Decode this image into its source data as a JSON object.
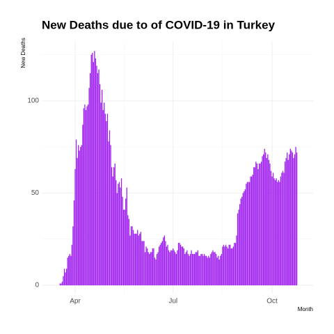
{
  "chart_data": {
    "type": "bar",
    "title": "New Deaths due to of COVID-19 in Turkey",
    "x_label": "Month",
    "y_label": "New Deaths",
    "color": "#a020f0",
    "grid": true,
    "ylim": [
      -4.5,
      132
    ],
    "yticks": [
      0,
      50,
      100
    ],
    "categories": [
      null,
      null,
      null,
      null,
      null,
      null,
      null,
      null,
      null,
      null,
      null,
      null,
      null,
      null,
      "Apr",
      null,
      null,
      null,
      null,
      null,
      null,
      null,
      null,
      null,
      null,
      null,
      null,
      null,
      null,
      null,
      null,
      null,
      null,
      null,
      null,
      null,
      null,
      null,
      null,
      null,
      null,
      null,
      null,
      null,
      null,
      null,
      null,
      null,
      null,
      null,
      null,
      null,
      null,
      null,
      null,
      null,
      null,
      null,
      null,
      null,
      null,
      null,
      null,
      null,
      null,
      null,
      null,
      null,
      null,
      null,
      null,
      null,
      null,
      null,
      null,
      null,
      null,
      null,
      null,
      null,
      null,
      null,
      null,
      null,
      null,
      null,
      null,
      null,
      null,
      null,
      null,
      null,
      null,
      null,
      null,
      null,
      null,
      null,
      null,
      null,
      null,
      null,
      null,
      null,
      null,
      "Jul",
      null,
      null,
      null,
      null,
      null,
      null,
      null,
      null,
      null,
      null,
      null,
      null,
      null,
      null,
      null,
      null,
      null,
      null,
      null,
      null,
      null,
      null,
      null,
      null,
      null,
      null,
      null,
      null,
      null,
      null,
      null,
      null,
      null,
      null,
      null,
      null,
      null,
      null,
      null,
      null,
      null,
      null,
      null,
      null,
      null,
      null,
      null,
      null,
      null,
      null,
      null,
      null,
      null,
      null,
      null,
      null,
      null,
      null,
      null,
      null,
      null,
      null,
      null,
      null,
      null,
      null,
      null,
      null,
      null,
      null,
      null,
      null,
      null,
      null,
      null,
      null,
      null,
      null,
      null,
      null,
      null,
      null,
      null,
      null,
      null,
      null,
      null,
      null,
      null,
      null,
      null,
      "Oct",
      null,
      null,
      null,
      null,
      null,
      null,
      null,
      null,
      null,
      null,
      null,
      null,
      null,
      null,
      null,
      null,
      null,
      null,
      null,
      null,
      null,
      null,
      null
    ],
    "values": [
      1,
      1,
      2,
      5,
      9,
      7,
      9,
      15,
      16,
      17,
      16,
      22,
      32,
      46,
      63,
      79,
      69,
      76,
      73,
      75,
      76,
      87,
      96,
      98,
      95,
      97,
      98,
      107,
      115,
      125,
      126,
      121,
      127,
      123,
      119,
      115,
      117,
      109,
      99,
      106,
      95,
      99,
      93,
      89,
      93,
      78,
      84,
      76,
      64,
      59,
      64,
      66,
      57,
      50,
      55,
      56,
      53,
      58,
      48,
      41,
      41,
      47,
      53,
      38,
      36,
      27,
      32,
      32,
      30,
      28,
      28,
      28,
      30,
      27,
      28,
      29,
      24,
      24,
      24,
      18,
      21,
      20,
      18,
      17,
      18,
      18,
      20,
      20,
      15,
      14,
      17,
      18,
      21,
      22,
      23,
      24,
      26,
      27,
      24,
      21,
      22,
      19,
      18,
      19,
      19,
      20,
      19,
      18,
      17,
      19,
      23,
      23,
      22,
      21,
      21,
      20,
      17,
      18,
      19,
      17,
      16,
      17,
      19,
      17,
      17,
      17,
      18,
      18,
      19,
      16,
      16,
      17,
      17,
      16,
      17,
      16,
      16,
      15,
      16,
      15,
      17,
      18,
      19,
      18,
      18,
      17,
      15,
      16,
      14,
      16,
      17,
      21,
      22,
      21,
      22,
      21,
      20,
      22,
      22,
      20,
      20,
      21,
      23,
      23,
      27,
      39,
      41,
      44,
      47,
      48,
      50,
      51,
      52,
      55,
      56,
      56,
      56,
      59,
      59,
      60,
      64,
      64,
      67,
      66,
      63,
      66,
      66,
      67,
      70,
      71,
      74,
      72,
      69,
      71,
      68,
      66,
      62,
      59,
      61,
      58,
      57,
      58,
      56,
      57,
      56,
      59,
      61,
      62,
      61,
      67,
      69,
      72,
      68,
      71,
      74,
      73,
      72,
      69,
      71,
      75,
      72
    ]
  }
}
